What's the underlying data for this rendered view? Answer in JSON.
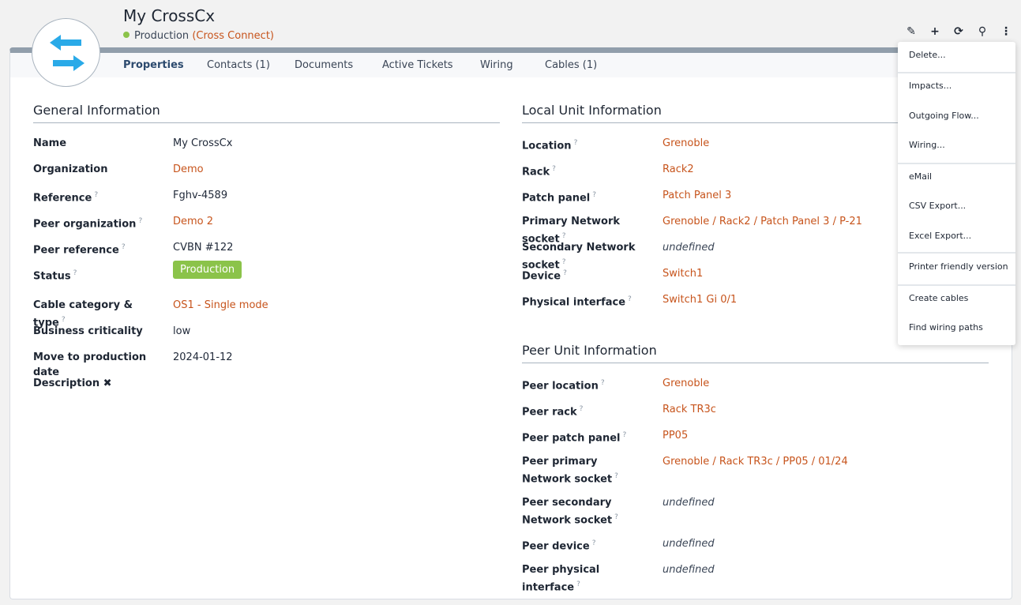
{
  "header": {
    "title": "My CrossCx",
    "status": "Production",
    "class_open": "(",
    "class": "Cross Connect",
    "class_close": ")",
    "status_color": "#8bc34a",
    "accent": "#c7541c"
  },
  "tabs": [
    "Properties",
    "Contacts (1)",
    "Documents",
    "Active Tickets",
    "Wiring",
    "Cables (1)"
  ],
  "toolbar": [
    "pencil-icon",
    "plus-icon",
    "refresh-icon",
    "search-icon",
    "more-vertical-icon"
  ],
  "general": {
    "title": "General Information",
    "rows": [
      {
        "label": "Name",
        "value": "My CrossCx",
        "type": "text"
      },
      {
        "label": "Organization",
        "value": "Demo",
        "type": "link"
      },
      {
        "label": "Reference",
        "value": "Fghv-4589",
        "type": "text",
        "help": "?"
      },
      {
        "label": "Peer organization",
        "value": "Demo 2",
        "type": "link",
        "help": "?"
      },
      {
        "label": "Peer reference",
        "value": "CVBN #122",
        "type": "text",
        "help": "?"
      },
      {
        "label": "Status",
        "value": "Production",
        "type": "badge",
        "help": "?"
      },
      {
        "label": "Cable category & type",
        "value": "OS1 - Single mode",
        "type": "link",
        "help": "?"
      },
      {
        "label": "Business criticality",
        "value": "low",
        "type": "text"
      },
      {
        "label": "Move to production date",
        "value": "2024-01-12",
        "type": "text"
      },
      {
        "label": "Description ✖",
        "value": "",
        "type": "text"
      }
    ]
  },
  "local": {
    "title": "Local Unit Information",
    "rows": [
      {
        "label": "Location",
        "value": "Grenoble",
        "type": "link",
        "help": "?"
      },
      {
        "label": "Rack",
        "value": "Rack2",
        "type": "link",
        "help": "?"
      },
      {
        "label": "Patch panel",
        "value": "Patch Panel 3",
        "type": "link",
        "help": "?"
      },
      {
        "label": "Primary Network socket",
        "value": "Grenoble / Rack2 / Patch Panel 3 / P-21",
        "type": "link",
        "help": "?"
      },
      {
        "label": "Secondary Network socket",
        "value": "undefined",
        "type": "und",
        "help": "?"
      },
      {
        "label": "Device",
        "value": "Switch1",
        "type": "link",
        "help": "?"
      },
      {
        "label": "Physical interface",
        "value": "Switch1 Gi 0/1",
        "type": "link",
        "help": "?"
      }
    ]
  },
  "peer": {
    "title": "Peer Unit Information",
    "rows": [
      {
        "label": "Peer location",
        "value": "Grenoble",
        "type": "link",
        "help": "?"
      },
      {
        "label": "Peer rack",
        "value": "Rack TR3c",
        "type": "link",
        "help": "?"
      },
      {
        "label": "Peer patch panel",
        "value": "PP05",
        "type": "link",
        "help": "?"
      },
      {
        "label": "Peer primary Network socket",
        "value": "Grenoble / Rack TR3c / PP05 / 01/24",
        "type": "link",
        "help": "?",
        "two": true
      },
      {
        "label": "Peer secondary Network socket",
        "value": "undefined",
        "type": "und",
        "help": "?",
        "two": true
      },
      {
        "label": "Peer device",
        "value": "undefined",
        "type": "und",
        "help": "?"
      },
      {
        "label": "Peer physical interface",
        "value": "undefined",
        "type": "und",
        "help": "?"
      }
    ]
  },
  "menu": [
    "Delete...",
    "Impacts...",
    "Outgoing Flow...",
    "Wiring...",
    "eMail",
    "CSV Export...",
    "Excel Export...",
    "Printer friendly version",
    "Create cables",
    "Find wiring paths"
  ]
}
